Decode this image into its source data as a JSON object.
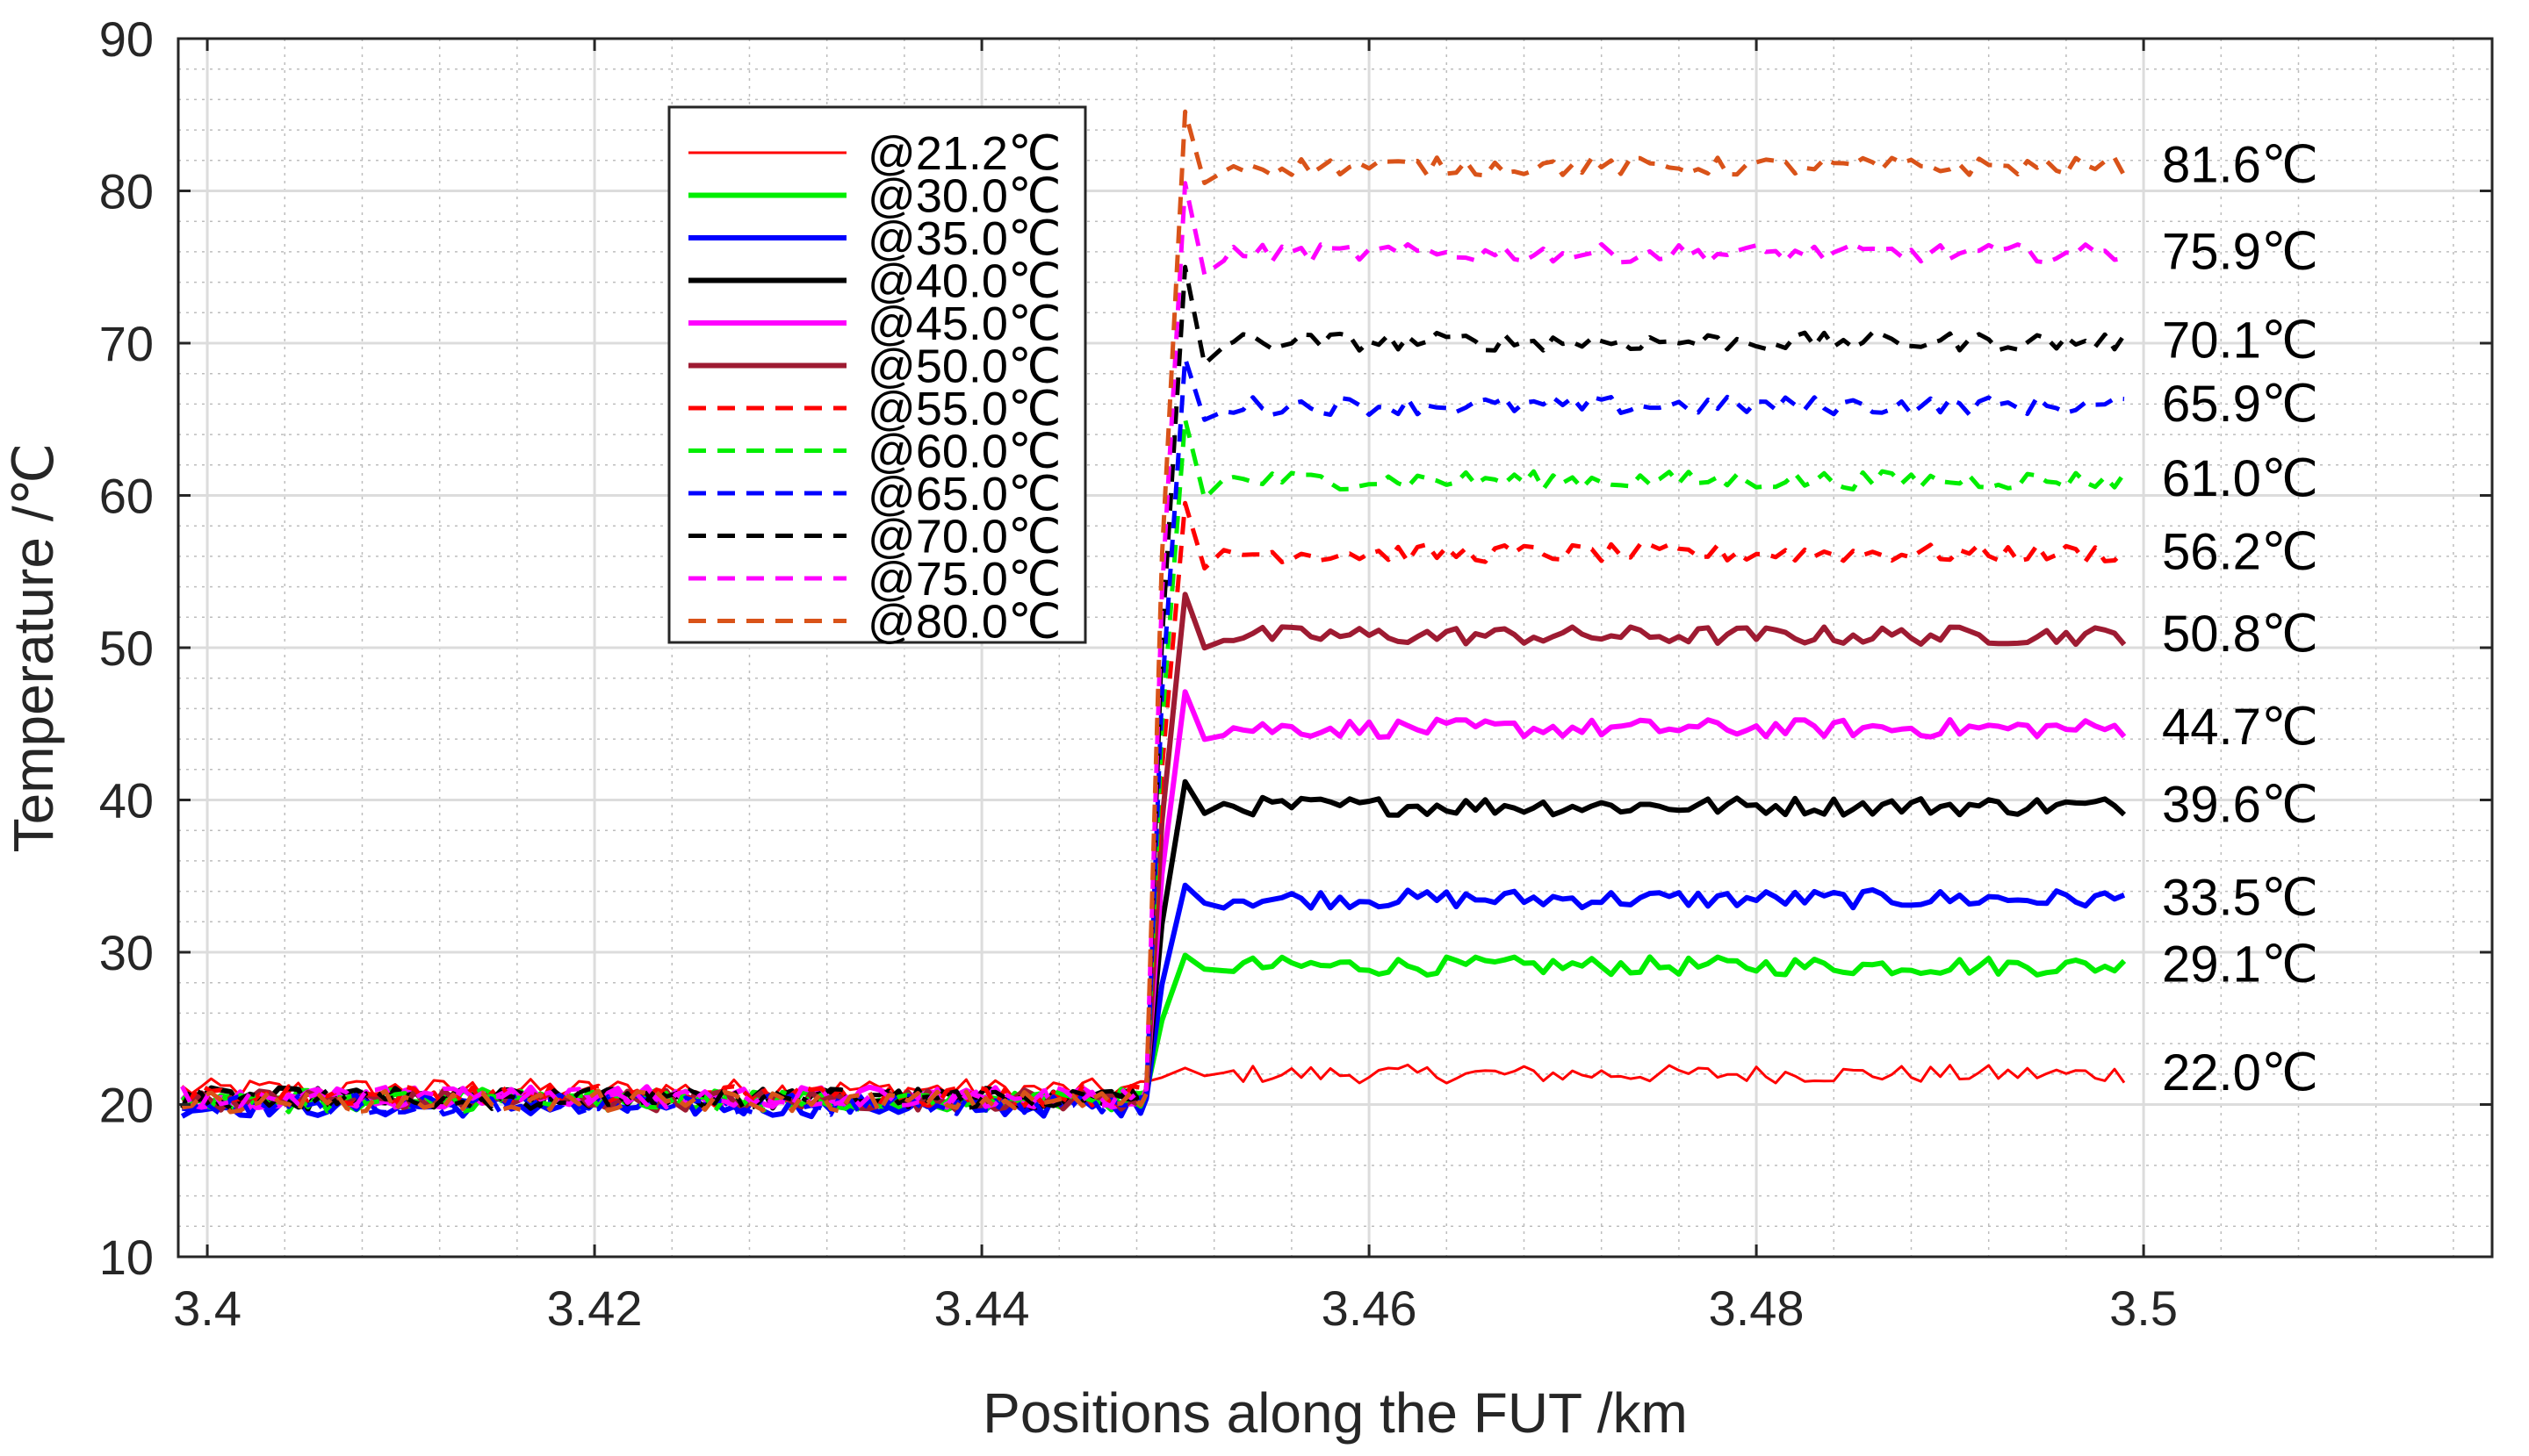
{
  "chart_data": {
    "type": "line",
    "xlabel": "Positions along the FUT /km",
    "ylabel": "Temperature /℃",
    "xlim": [
      3.3985,
      3.518
    ],
    "ylim": [
      10,
      90
    ],
    "xticks": [
      "3.4",
      "3.42",
      "3.44",
      "3.46",
      "3.48",
      "3.5"
    ],
    "xtick_values": [
      3.4,
      3.42,
      3.44,
      3.46,
      3.48,
      3.5
    ],
    "yticks": [
      "10",
      "20",
      "30",
      "40",
      "50",
      "60",
      "70",
      "80",
      "90"
    ],
    "ytick_values": [
      10,
      20,
      30,
      40,
      50,
      60,
      70,
      80,
      90
    ],
    "grid": true,
    "minor_grid": true,
    "legend_position": "upper-left",
    "step_start_km": 3.4485,
    "step_end_km": 3.4505,
    "x_end_km": 3.499,
    "series": [
      {
        "name": "@21.2℃",
        "color": "#ff0000",
        "style": "solid",
        "width": 3,
        "base": 21.0,
        "plateau": 22.0,
        "overshoot": 22.4,
        "end_label": "22.0℃"
      },
      {
        "name": "@30.0℃",
        "color": "#00ee00",
        "style": "solid",
        "width": 6,
        "base": 20.3,
        "plateau": 29.1,
        "overshoot": 29.8,
        "end_label": "29.1℃"
      },
      {
        "name": "@35.0℃",
        "color": "#0000ff",
        "style": "solid",
        "width": 6,
        "base": 19.9,
        "plateau": 33.5,
        "overshoot": 34.4,
        "end_label": "33.5℃"
      },
      {
        "name": "@40.0℃",
        "color": "#000000",
        "style": "solid",
        "width": 6,
        "base": 20.4,
        "plateau": 39.6,
        "overshoot": 41.2,
        "end_label": "39.6℃"
      },
      {
        "name": "@45.0℃",
        "color": "#ff00ff",
        "style": "solid",
        "width": 6,
        "base": 20.5,
        "plateau": 44.7,
        "overshoot": 47.1,
        "end_label": "44.7℃"
      },
      {
        "name": "@50.0℃",
        "color": "#9e1b32",
        "style": "solid",
        "width": 6,
        "base": 20.3,
        "plateau": 50.8,
        "overshoot": 53.5,
        "end_label": "50.8℃"
      },
      {
        "name": "@55.0℃",
        "color": "#ff0000",
        "style": "dashed",
        "width": 5,
        "base": 20.6,
        "plateau": 56.2,
        "overshoot": 59.5,
        "end_label": "56.2℃"
      },
      {
        "name": "@60.0℃",
        "color": "#00ee00",
        "style": "dashed",
        "width": 5,
        "base": 20.2,
        "plateau": 61.0,
        "overshoot": 65.0,
        "end_label": "61.0℃"
      },
      {
        "name": "@65.0℃",
        "color": "#0000ff",
        "style": "dashed",
        "width": 5,
        "base": 20.0,
        "plateau": 65.9,
        "overshoot": 69.0,
        "end_label": "65.9℃"
      },
      {
        "name": "@70.0℃",
        "color": "#000000",
        "style": "dashed",
        "width": 5,
        "base": 20.4,
        "plateau": 70.1,
        "overshoot": 75.0,
        "end_label": "70.1℃"
      },
      {
        "name": "@75.0℃",
        "color": "#ff00ff",
        "style": "dashed",
        "width": 5,
        "base": 20.5,
        "plateau": 75.9,
        "overshoot": 80.5,
        "end_label": "75.9℃"
      },
      {
        "name": "@80.0℃",
        "color": "#d95319",
        "style": "dashed",
        "width": 5,
        "base": 20.2,
        "plateau": 81.6,
        "overshoot": 85.2,
        "end_label": "81.6℃"
      }
    ]
  }
}
